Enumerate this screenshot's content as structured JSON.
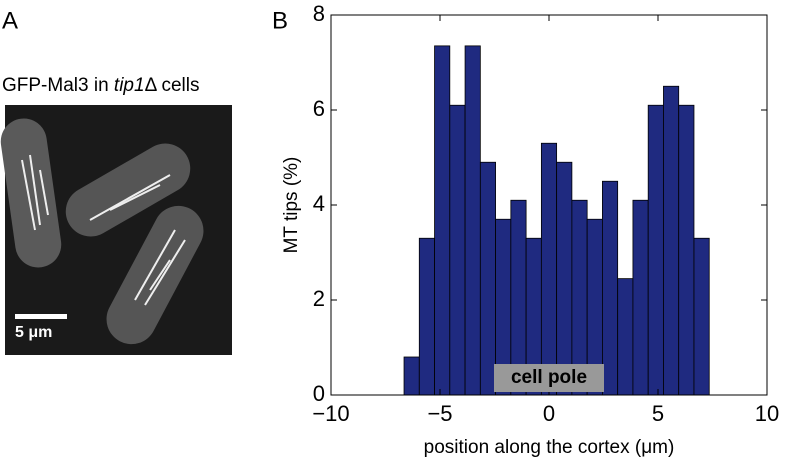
{
  "panel_a": {
    "label": "A",
    "caption": {
      "prefix": "GFP-Mal3 in ",
      "gene": "tip1",
      "suffix": "Δ cells"
    },
    "scale_bar": "5 μm"
  },
  "chart_data": {
    "type": "histogram",
    "panel_label": "B",
    "x_label": "position along the cortex (μm)",
    "y_label": "MT tips (%)",
    "annotation": "cell pole",
    "bins": [
      -6.65,
      -5.95,
      -5.25,
      -4.55,
      -3.85,
      -3.15,
      -2.45,
      -1.75,
      -1.05,
      -0.35,
      0.35,
      1.05,
      1.75,
      2.45,
      3.15,
      3.85,
      4.55,
      5.25,
      5.95,
      6.65,
      7.35
    ],
    "values": [
      0.8,
      3.3,
      7.35,
      6.1,
      7.35,
      4.9,
      3.7,
      4.1,
      3.3,
      5.3,
      4.9,
      4.1,
      3.7,
      4.5,
      2.45,
      4.1,
      6.1,
      6.5,
      6.1,
      3.3
    ],
    "color": "#1f2a80",
    "xlim": [
      -10,
      10
    ],
    "ylim": [
      0,
      8
    ],
    "xticks": [
      {
        "value": -10,
        "label": "−10"
      },
      {
        "value": -5,
        "label": "−5"
      },
      0,
      5,
      10
    ],
    "yticks": [
      0,
      2,
      4,
      6,
      8
    ]
  }
}
